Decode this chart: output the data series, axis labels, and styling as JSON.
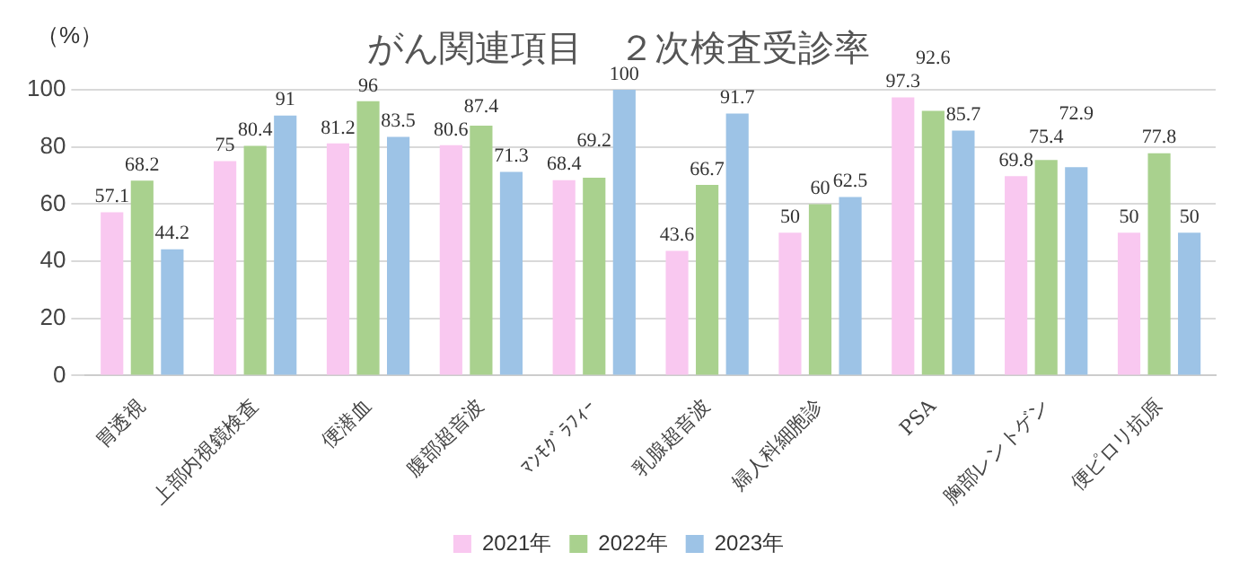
{
  "chart_data": {
    "type": "bar",
    "title": "がん関連項目　２次検査受診率",
    "ylabel": "（%）",
    "categories": [
      "胃透視",
      "上部内視鏡検査",
      "便潜血",
      "腹部超音波",
      "ﾏﾝﾓｸﾞﾗﾌｨｰ",
      "乳腺超音波",
      "婦人科細胞診",
      "PSA",
      "胸部レントゲン",
      "便ピロリ抗原"
    ],
    "series": [
      {
        "name": "2021年",
        "color": "#f9c8f0",
        "values": [
          57.1,
          75,
          81.2,
          80.6,
          68.4,
          43.6,
          50,
          97.3,
          69.8,
          50
        ]
      },
      {
        "name": "2022年",
        "color": "#a9d18e",
        "values": [
          68.2,
          80.4,
          96,
          87.4,
          69.2,
          66.7,
          60,
          92.6,
          75.4,
          77.8
        ]
      },
      {
        "name": "2023年",
        "color": "#9dc3e6",
        "values": [
          44.2,
          91,
          83.5,
          71.3,
          100,
          91.7,
          62.5,
          85.7,
          72.9,
          50
        ]
      }
    ],
    "ylim": [
      0,
      100
    ],
    "yticks": [
      0,
      20,
      40,
      60,
      80,
      100
    ],
    "grid": "y",
    "legend": "bottom",
    "data_labels": true
  }
}
